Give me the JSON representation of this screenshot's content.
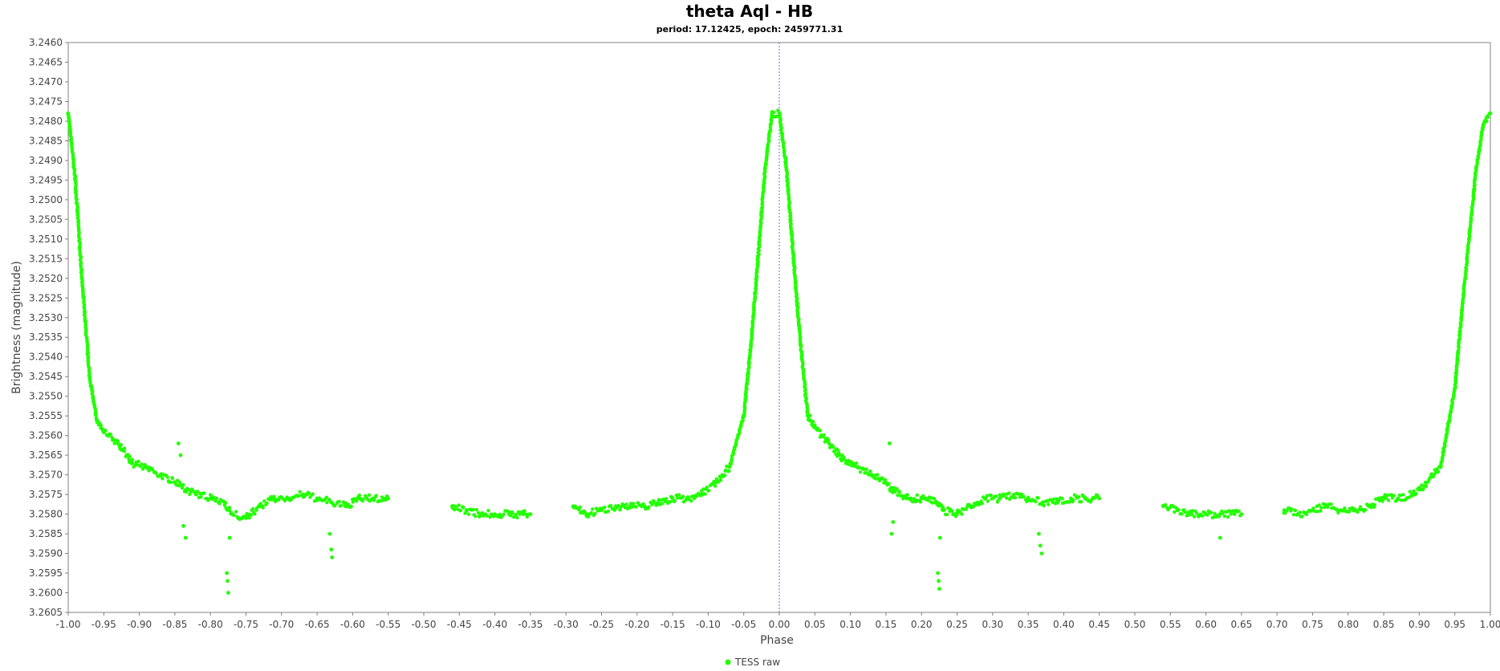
{
  "chart_data": {
    "type": "scatter",
    "title": "theta Aql - HB",
    "subtitle": "period: 17.12425, epoch: 2459771.31",
    "xlabel": "Phase",
    "ylabel": "Brightness (magnitude)",
    "xlim": [
      -1.0,
      1.0
    ],
    "ylim": [
      3.246,
      3.2605
    ],
    "y_inverted": true,
    "x_tick_step": 0.05,
    "y_tick_step": 0.0005,
    "grid": false,
    "zero_line": true,
    "legend": "bottom-center",
    "colors": {
      "series": "#22ff00",
      "zero_line": "#6a6af0",
      "frame": "#808080"
    },
    "series": [
      {
        "name": "TESS raw",
        "curve_shape": "periodic, phase-folded; primary maximum at phase 0.00 mirrored at -1.00 and 1.00; data gaps near 0.45–0.53, 0.65–0.71",
        "x": [
          -1.0,
          -0.99,
          -0.98,
          -0.97,
          -0.96,
          -0.95,
          -0.93,
          -0.91,
          -0.89,
          -0.87,
          -0.85,
          -0.84,
          -0.82,
          -0.8,
          -0.78,
          -0.77,
          -0.75,
          -0.73,
          -0.71,
          -0.69,
          -0.67,
          -0.65,
          -0.63,
          -0.61,
          -0.59,
          -0.57,
          -0.55,
          -0.46,
          -0.44,
          -0.42,
          -0.4,
          -0.38,
          -0.36,
          -0.35,
          -0.29,
          -0.27,
          -0.25,
          -0.23,
          -0.21,
          -0.19,
          -0.17,
          -0.15,
          -0.13,
          -0.11,
          -0.09,
          -0.07,
          -0.05,
          -0.04,
          -0.03,
          -0.02,
          -0.01,
          0.0,
          0.01,
          0.02,
          0.03,
          0.04,
          0.05,
          0.07,
          0.09,
          0.11,
          0.13,
          0.15,
          0.16,
          0.18,
          0.2,
          0.22,
          0.23,
          0.25,
          0.27,
          0.29,
          0.31,
          0.33,
          0.35,
          0.37,
          0.39,
          0.41,
          0.43,
          0.45,
          0.54,
          0.56,
          0.58,
          0.6,
          0.62,
          0.64,
          0.65,
          0.71,
          0.73,
          0.75,
          0.77,
          0.79,
          0.81,
          0.83,
          0.85,
          0.87,
          0.89,
          0.91,
          0.93,
          0.95,
          0.96,
          0.97,
          0.98,
          0.99,
          1.0
        ],
        "y": [
          3.2478,
          3.2495,
          3.2522,
          3.2545,
          3.2556,
          3.2559,
          3.2562,
          3.2567,
          3.2568,
          3.257,
          3.2572,
          3.2573,
          3.2575,
          3.2576,
          3.2577,
          3.258,
          3.2581,
          3.2578,
          3.2576,
          3.2576,
          3.2575,
          3.2576,
          3.2577,
          3.2578,
          3.2576,
          3.2576,
          3.2576,
          3.2578,
          3.2579,
          3.258,
          3.258,
          3.258,
          3.258,
          3.258,
          3.2578,
          3.258,
          3.2579,
          3.2578,
          3.2578,
          3.2578,
          3.2577,
          3.2576,
          3.2576,
          3.2575,
          3.2572,
          3.2568,
          3.2555,
          3.2537,
          3.2515,
          3.2492,
          3.2478,
          3.2478,
          3.2492,
          3.2515,
          3.2537,
          3.2555,
          3.2558,
          3.2562,
          3.2566,
          3.2568,
          3.257,
          3.2572,
          3.2574,
          3.2576,
          3.2576,
          3.2577,
          3.2579,
          3.258,
          3.2578,
          3.2576,
          3.2576,
          3.2575,
          3.2576,
          3.2577,
          3.2577,
          3.2576,
          3.2576,
          3.2576,
          3.2578,
          3.2579,
          3.258,
          3.258,
          3.258,
          3.258,
          3.258,
          3.2579,
          3.258,
          3.2579,
          3.2578,
          3.2579,
          3.2579,
          3.2578,
          3.2576,
          3.2576,
          3.2575,
          3.2572,
          3.2568,
          3.2548,
          3.2528,
          3.251,
          3.2492,
          3.2481,
          3.2478
        ]
      }
    ],
    "outliers": {
      "x": [
        -0.845,
        -0.842,
        -0.838,
        -0.835,
        -0.777,
        -0.776,
        -0.775,
        -0.773,
        -0.632,
        -0.63,
        -0.629,
        0.155,
        0.158,
        0.16,
        0.223,
        0.224,
        0.225,
        0.226,
        0.365,
        0.367,
        0.369,
        0.62
      ],
      "y": [
        3.2562,
        3.2565,
        3.2583,
        3.2586,
        3.2595,
        3.2597,
        3.26,
        3.2586,
        3.2585,
        3.2589,
        3.2591,
        3.2562,
        3.2585,
        3.2582,
        3.2595,
        3.2597,
        3.2599,
        3.2586,
        3.2585,
        3.2588,
        3.259,
        3.2586
      ]
    }
  }
}
